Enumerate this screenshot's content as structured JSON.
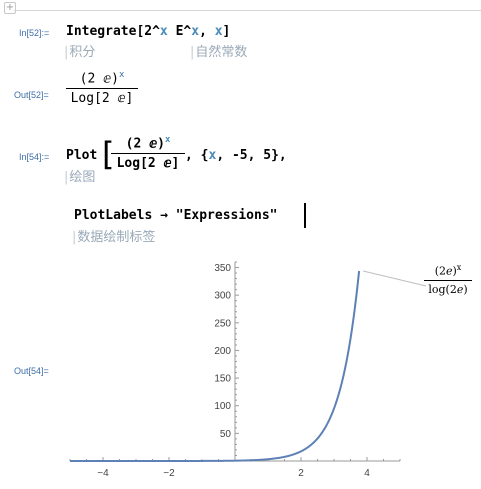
{
  "notebook": {
    "in52": {
      "label": "In[52]:=",
      "code_head": "Integrate[2^",
      "code_var1": "x",
      "code_mid": " E^",
      "code_var2": "x",
      "code_comma": ", ",
      "code_var3": "x",
      "code_tail": "]",
      "hint1": "积分",
      "hint2": "自然常数"
    },
    "out52": {
      "label": "Out[52]=",
      "numerator": "(2 ⅇ)",
      "exponent": "x",
      "denominator": "Log[2 ⅇ]"
    },
    "in54": {
      "label": "In[54]:=",
      "plot_keyword": "Plot",
      "frac_numerator": "(2 ⅇ)",
      "frac_exponent": "x",
      "frac_denominator": "Log[2 ⅇ]",
      "range_open": ", {",
      "range_var": "x",
      "range_rest": ", -5, 5},",
      "hint_plot": "绘图",
      "option_line": "PlotLabels → \"Expressions\"",
      "hint_option": "数据绘制标签"
    },
    "out54": {
      "label": "Out[54]="
    }
  },
  "chart_data": {
    "type": "line",
    "series": [
      {
        "name": "(2ℯ)^x / log(2ℯ)",
        "function": "(2e)^x/log(2e)",
        "color": "#5e81b5"
      }
    ],
    "legend_label": {
      "numerator": "(2ℯ)",
      "exponent": "x",
      "denominator": "log(2ℯ)"
    },
    "xlim": [
      -5,
      5
    ],
    "ylim": [
      0,
      360
    ],
    "x_ticks": [
      -4,
      -2,
      0,
      2,
      4
    ],
    "x_tick_labels": [
      "−4",
      "−2",
      "",
      "2",
      "4"
    ],
    "y_ticks": [
      50,
      100,
      150,
      200,
      250,
      300,
      350
    ],
    "y_tick_labels": [
      "50",
      "100",
      "150",
      "200",
      "250",
      "300",
      "350"
    ],
    "grid": false
  }
}
